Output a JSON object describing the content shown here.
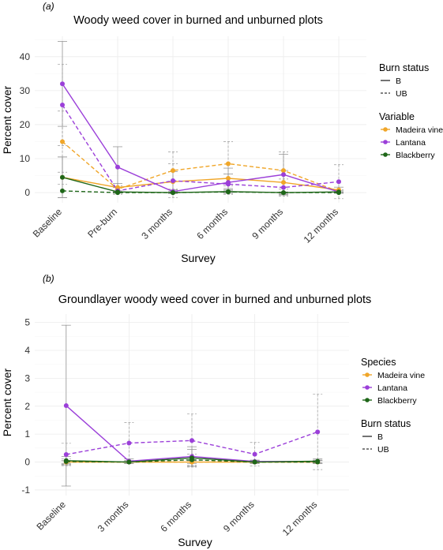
{
  "chart_data": [
    {
      "type": "line",
      "panel_label": "(a)",
      "title": "Woody weed cover in burned and unburned plots",
      "xlabel": "Survey",
      "ylabel": "Percent cover",
      "categories": [
        "Baseline",
        "Pre-burn",
        "3 months",
        "6 months",
        "9 months",
        "12 months"
      ],
      "ylim": [
        -3,
        46
      ],
      "yticks": [
        0,
        10,
        20,
        30,
        40
      ],
      "grid": true,
      "legend_position": "right",
      "legend": {
        "linetype_title": "Burn status",
        "linetypes": [
          {
            "label": "B",
            "dash": "solid"
          },
          {
            "label": "UB",
            "dash": "dashed"
          }
        ],
        "color_title": "Variable",
        "colors": [
          {
            "label": "Madeira vine",
            "color": "#F0A629"
          },
          {
            "label": "Lantana",
            "color": "#9B3FD9"
          },
          {
            "label": "Blackberry",
            "color": "#1E6618"
          }
        ],
        "order": "linetype-first"
      },
      "series": [
        {
          "species": "Madeira vine",
          "status": "B",
          "values": [
            4.5,
            1.5,
            3.2,
            4.2,
            3.0,
            0.8
          ],
          "err": [
            6.0,
            1.2,
            3.0,
            3.0,
            3.5,
            0.8
          ]
        },
        {
          "species": "Madeira vine",
          "status": "UB",
          "values": [
            15.0,
            1.0,
            6.5,
            8.5,
            6.5,
            0.3
          ],
          "err": [
            9.0,
            1.0,
            5.5,
            6.5,
            5.5,
            0.5
          ]
        },
        {
          "species": "Lantana",
          "status": "B",
          "values": [
            32.0,
            7.5,
            0.3,
            3.0,
            5.3,
            0.2
          ],
          "err": [
            12.5,
            6.0,
            0.5,
            2.5,
            6.0,
            0.3
          ]
        },
        {
          "species": "Lantana",
          "status": "UB",
          "values": [
            25.8,
            0.5,
            3.5,
            2.5,
            1.5,
            3.2
          ],
          "err": [
            12.0,
            1.0,
            5.0,
            3.0,
            2.5,
            5.0
          ]
        },
        {
          "species": "Blackberry",
          "status": "B",
          "values": [
            4.5,
            0.2,
            0.0,
            0.3,
            0.0,
            0.2
          ],
          "err": [
            6.0,
            0.3,
            0.3,
            0.5,
            0.2,
            0.3
          ]
        },
        {
          "species": "Blackberry",
          "status": "UB",
          "values": [
            0.5,
            0.0,
            0.0,
            0.2,
            0.0,
            0.0
          ],
          "err": [
            2.0,
            0.2,
            0.2,
            0.3,
            0.2,
            0.2
          ]
        }
      ]
    },
    {
      "type": "line",
      "panel_label": "(b)",
      "title": "Groundlayer woody weed cover in burned and unburned plots",
      "xlabel": "Survey",
      "ylabel": "Percent cover",
      "categories": [
        "Baseline",
        "3 months",
        "6 months",
        "9 months",
        "12 months"
      ],
      "ylim": [
        -1.2,
        5.3
      ],
      "yticks": [
        -1,
        0,
        1,
        2,
        3,
        4,
        5
      ],
      "grid": true,
      "legend_position": "right",
      "legend": {
        "color_title": "Species",
        "colors": [
          {
            "label": "Madeira vine",
            "color": "#F0A629"
          },
          {
            "label": "Lantana",
            "color": "#9B3FD9"
          },
          {
            "label": "Blackberry",
            "color": "#1E6618"
          }
        ],
        "linetype_title": "Burn status",
        "linetypes": [
          {
            "label": "B",
            "dash": "solid"
          },
          {
            "label": "UB",
            "dash": "dashed"
          }
        ],
        "order": "color-first"
      },
      "series": [
        {
          "species": "Madeira vine",
          "status": "B",
          "values": [
            0.0,
            0.0,
            0.0,
            0.0,
            0.0
          ],
          "err": [
            0.05,
            0.05,
            0.05,
            0.05,
            0.05
          ]
        },
        {
          "species": "Madeira vine",
          "status": "UB",
          "values": [
            0.0,
            0.0,
            0.0,
            0.0,
            0.0
          ],
          "err": [
            0.05,
            0.05,
            0.05,
            0.05,
            0.05
          ]
        },
        {
          "species": "Lantana",
          "status": "B",
          "values": [
            2.02,
            0.03,
            0.2,
            0.02,
            0.02
          ],
          "err": [
            2.88,
            0.08,
            0.35,
            0.05,
            0.05
          ]
        },
        {
          "species": "Lantana",
          "status": "UB",
          "values": [
            0.27,
            0.68,
            0.77,
            0.28,
            1.08
          ],
          "err": [
            0.4,
            0.73,
            0.95,
            0.42,
            1.35
          ]
        },
        {
          "species": "Blackberry",
          "status": "B",
          "values": [
            0.05,
            0.0,
            0.15,
            0.0,
            0.03
          ],
          "err": [
            0.15,
            0.05,
            0.3,
            0.05,
            0.08
          ]
        },
        {
          "species": "Blackberry",
          "status": "UB",
          "values": [
            0.02,
            0.0,
            0.08,
            0.0,
            0.0
          ],
          "err": [
            0.1,
            0.05,
            0.2,
            0.05,
            0.05
          ]
        }
      ]
    }
  ]
}
